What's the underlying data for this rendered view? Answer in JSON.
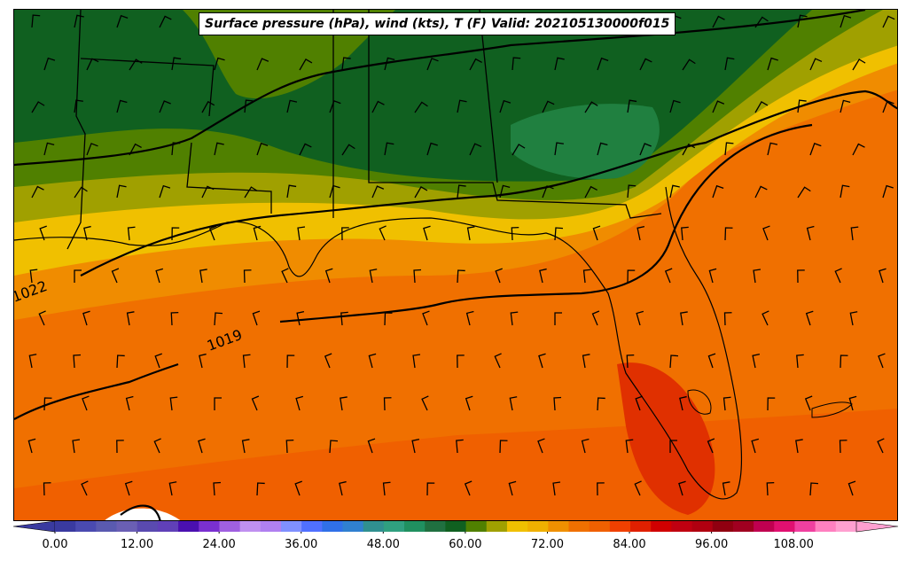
{
  "title": "Surface pressure (hPa), wind (kts), T (F) Valid: 202105130000f015",
  "isobar_labels": [
    {
      "text": "1022",
      "name": "isobar-label-1022"
    },
    {
      "text": "1019",
      "name": "isobar-label-1019"
    }
  ],
  "colorbar": {
    "min": -6,
    "max": 120,
    "ticks": [
      "0.00",
      "12.00",
      "24.00",
      "36.00",
      "48.00",
      "60.00",
      "72.00",
      "84.00",
      "96.00",
      "108.00"
    ],
    "colors": [
      "#3a3aa0",
      "#4a4ab0",
      "#5a5ab0",
      "#6a5fb4",
      "#5a4ab0",
      "#6040b8",
      "#4a10b0",
      "#7a30d0",
      "#a060e0",
      "#c090f0",
      "#b080f0",
      "#8090ff",
      "#5070ff",
      "#3070e8",
      "#3080d0",
      "#309090",
      "#30a080",
      "#209060",
      "#207040",
      "#106020",
      "#508000",
      "#a0a000",
      "#f0c000",
      "#f0b000",
      "#f09000",
      "#f07000",
      "#f06000",
      "#f04000",
      "#e02000",
      "#d00000",
      "#c00010",
      "#b00010",
      "#900010",
      "#a00020",
      "#c00050",
      "#e01070",
      "#f040a0",
      "#ff80c0",
      "#ffa0d0"
    ]
  }
}
